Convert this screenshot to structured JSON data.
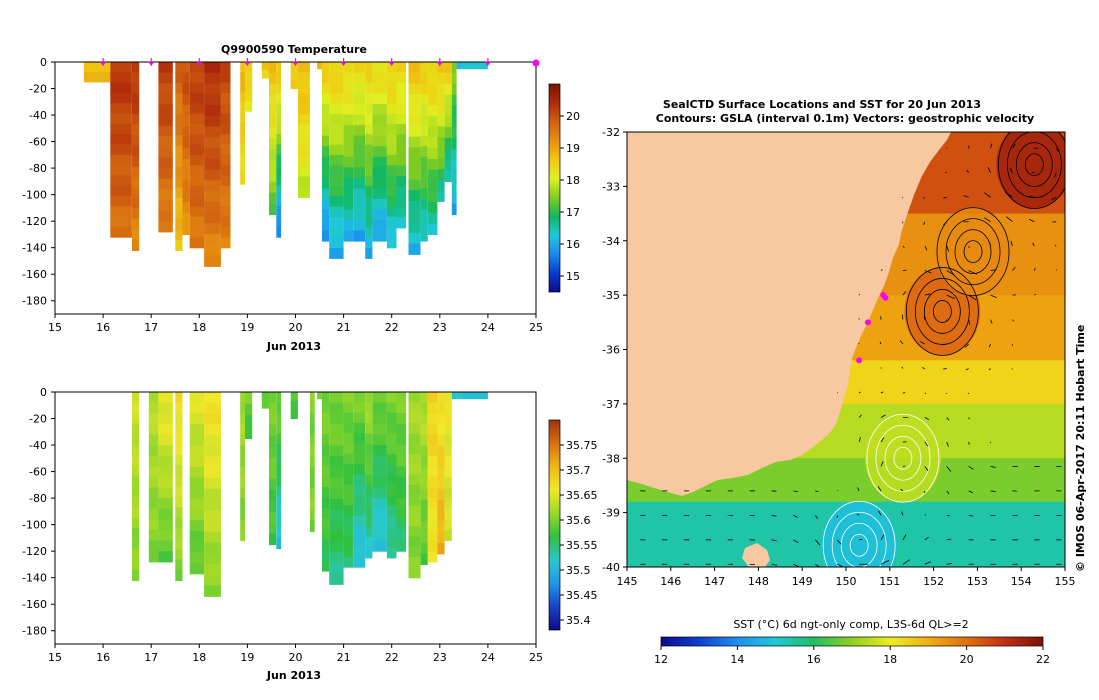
{
  "colors": {
    "land": "#f8c8a0",
    "cbar_temp": [
      "#0b0b8a",
      "#0a3ad0",
      "#1a8aee",
      "#20c8dc",
      "#10b860",
      "#80cc20",
      "#e0f020",
      "#f0c810",
      "#e89010",
      "#d06010",
      "#b02a0a",
      "#7a1408"
    ],
    "cbar_sst": [
      "#0b0b8a",
      "#1040d0",
      "#2090f0",
      "#20c8d8",
      "#20c060",
      "#90d020",
      "#f0ec20",
      "#f0b010",
      "#e07010",
      "#c03010",
      "#801008"
    ],
    "cbar_sal": [
      "#0b0b8a",
      "#1a40c8",
      "#2098e8",
      "#28c8d0",
      "#30c040",
      "#98d828",
      "#f0e828",
      "#f0b818",
      "#d87010",
      "#a03410"
    ],
    "vectors": "#000000",
    "contours_pos": "#000000",
    "contours_neg": "#ffffff",
    "marker": "#ff00ff"
  },
  "chart_data": [
    {
      "type": "heatmap",
      "title": "Q9900590  Temperature",
      "xlabel": "Jun 2013",
      "ylabel": "",
      "xlim": [
        15,
        25
      ],
      "ylim": [
        -190,
        0
      ],
      "x_ticks": [
        "15",
        "16",
        "17",
        "18",
        "19",
        "20",
        "21",
        "22",
        "23",
        "24",
        "25"
      ],
      "y_ticks": [
        "0",
        "-20",
        "-40",
        "-60",
        "-80",
        "-100",
        "-120",
        "-140",
        "-160",
        "-180"
      ],
      "colorbar": {
        "min": 14.5,
        "max": 21.0,
        "ticks": [
          "15",
          "16",
          "17",
          "18",
          "19",
          "20"
        ]
      },
      "profile_markers": [
        16.0,
        17.0,
        18.0,
        19.0,
        20.0,
        21.0,
        22.0,
        23.0,
        24.0,
        25.0
      ],
      "profiles": [
        {
          "x0": 15.6,
          "x1": 16.15,
          "depth": 15,
          "surface": 18.7,
          "deep": 18.7
        },
        {
          "x0": 16.15,
          "x1": 16.6,
          "depth": 132,
          "surface": 20.3,
          "deep": 19.6
        },
        {
          "x0": 16.6,
          "x1": 16.75,
          "depth": 142,
          "surface": 20.3,
          "deep": 19.3
        },
        {
          "x0": 17.15,
          "x1": 17.45,
          "depth": 128,
          "surface": 20.2,
          "deep": 19.4
        },
        {
          "x0": 17.5,
          "x1": 17.65,
          "depth": 142,
          "surface": 19.8,
          "deep": 18.6
        },
        {
          "x0": 17.65,
          "x1": 17.8,
          "depth": 130,
          "surface": 20.0,
          "deep": 19.2
        },
        {
          "x0": 17.8,
          "x1": 18.1,
          "depth": 140,
          "surface": 20.2,
          "deep": 19.5
        },
        {
          "x0": 18.1,
          "x1": 18.45,
          "depth": 154,
          "surface": 20.4,
          "deep": 19.3
        },
        {
          "x0": 18.45,
          "x1": 18.65,
          "depth": 140,
          "surface": 20.1,
          "deep": 19.4
        },
        {
          "x0": 18.85,
          "x1": 18.95,
          "depth": 92,
          "surface": 18.8,
          "deep": 18.3
        },
        {
          "x0": 18.95,
          "x1": 19.1,
          "depth": 37,
          "surface": 18.7,
          "deep": 18.0
        },
        {
          "x0": 19.3,
          "x1": 19.45,
          "depth": 12,
          "surface": 18.7,
          "deep": 18.4
        },
        {
          "x0": 19.45,
          "x1": 19.6,
          "depth": 115,
          "surface": 18.7,
          "deep": 17.2
        },
        {
          "x0": 19.6,
          "x1": 19.7,
          "depth": 132,
          "surface": 18.7,
          "deep": 15.4
        },
        {
          "x0": 19.9,
          "x1": 20.05,
          "depth": 20,
          "surface": 18.7,
          "deep": 18.5
        },
        {
          "x0": 20.05,
          "x1": 20.3,
          "depth": 102,
          "surface": 18.8,
          "deep": 17.8
        },
        {
          "x0": 20.45,
          "x1": 20.55,
          "depth": 5,
          "surface": 18.7,
          "deep": 18.7
        },
        {
          "x0": 20.55,
          "x1": 20.7,
          "depth": 135,
          "surface": 18.6,
          "deep": 15.5
        },
        {
          "x0": 20.7,
          "x1": 21.0,
          "depth": 148,
          "surface": 18.6,
          "deep": 15.8
        },
        {
          "x0": 21.0,
          "x1": 21.2,
          "depth": 135,
          "surface": 18.5,
          "deep": 16.0
        },
        {
          "x0": 21.2,
          "x1": 21.45,
          "depth": 135,
          "surface": 18.4,
          "deep": 15.8
        },
        {
          "x0": 21.45,
          "x1": 21.6,
          "depth": 148,
          "surface": 18.5,
          "deep": 16.0
        },
        {
          "x0": 21.6,
          "x1": 21.9,
          "depth": 135,
          "surface": 18.4,
          "deep": 15.8
        },
        {
          "x0": 21.9,
          "x1": 22.1,
          "depth": 140,
          "surface": 18.6,
          "deep": 16.1
        },
        {
          "x0": 22.1,
          "x1": 22.3,
          "depth": 125,
          "surface": 18.5,
          "deep": 16.2
        },
        {
          "x0": 22.35,
          "x1": 22.6,
          "depth": 145,
          "surface": 18.7,
          "deep": 16.0
        },
        {
          "x0": 22.6,
          "x1": 22.75,
          "depth": 135,
          "surface": 18.6,
          "deep": 16.2
        },
        {
          "x0": 22.75,
          "x1": 22.95,
          "depth": 130,
          "surface": 18.6,
          "deep": 16.4
        },
        {
          "x0": 22.95,
          "x1": 23.1,
          "depth": 105,
          "surface": 18.7,
          "deep": 16.5
        },
        {
          "x0": 23.1,
          "x1": 23.25,
          "depth": 90,
          "surface": 18.6,
          "deep": 16.2
        },
        {
          "x0": 23.25,
          "x1": 23.35,
          "depth": 115,
          "surface": 17.5,
          "deep": 15.9
        },
        {
          "x0": 23.35,
          "x1": 23.45,
          "depth": 5,
          "surface": 16.3,
          "deep": 16.3
        },
        {
          "x0": 23.45,
          "x1": 24.0,
          "depth": 5,
          "surface": 16.3,
          "deep": 16.3
        }
      ]
    },
    {
      "type": "heatmap",
      "title": "",
      "xlabel": "Jun 2013",
      "ylabel": "",
      "xlim": [
        15,
        25
      ],
      "ylim": [
        -190,
        0
      ],
      "x_ticks": [
        "15",
        "16",
        "17",
        "18",
        "19",
        "20",
        "21",
        "22",
        "23",
        "24",
        "25"
      ],
      "y_ticks": [
        "0",
        "-20",
        "-40",
        "-60",
        "-80",
        "-100",
        "-120",
        "-140",
        "-160",
        "-180"
      ],
      "colorbar": {
        "min": 35.38,
        "max": 35.8,
        "ticks": [
          "35.4",
          "35.45",
          "35.5",
          "35.55",
          "35.6",
          "35.65",
          "35.7",
          "35.75"
        ]
      },
      "profiles": [
        {
          "x0": 16.6,
          "x1": 16.75,
          "depth": 142,
          "surface": 35.64,
          "deep": 35.6
        },
        {
          "x0": 16.95,
          "x1": 17.15,
          "depth": 128,
          "surface": 35.63,
          "deep": 35.6
        },
        {
          "x0": 17.15,
          "x1": 17.45,
          "depth": 128,
          "surface": 35.66,
          "deep": 35.58
        },
        {
          "x0": 17.5,
          "x1": 17.65,
          "depth": 142,
          "surface": 35.67,
          "deep": 35.6
        },
        {
          "x0": 17.8,
          "x1": 18.1,
          "depth": 137,
          "surface": 35.65,
          "deep": 35.58
        },
        {
          "x0": 18.1,
          "x1": 18.45,
          "depth": 154,
          "surface": 35.67,
          "deep": 35.6
        },
        {
          "x0": 18.85,
          "x1": 18.95,
          "depth": 112,
          "surface": 35.62,
          "deep": 35.6
        },
        {
          "x0": 18.95,
          "x1": 19.1,
          "depth": 35,
          "surface": 35.6,
          "deep": 35.57
        },
        {
          "x0": 19.3,
          "x1": 19.45,
          "depth": 12,
          "surface": 35.58,
          "deep": 35.58
        },
        {
          "x0": 19.45,
          "x1": 19.6,
          "depth": 115,
          "surface": 35.6,
          "deep": 35.57
        },
        {
          "x0": 19.6,
          "x1": 19.7,
          "depth": 118,
          "surface": 35.6,
          "deep": 35.5
        },
        {
          "x0": 19.9,
          "x1": 20.05,
          "depth": 20,
          "surface": 35.58,
          "deep": 35.58
        },
        {
          "x0": 20.3,
          "x1": 20.4,
          "depth": 105,
          "surface": 35.6,
          "deep": 35.6
        },
        {
          "x0": 20.45,
          "x1": 20.55,
          "depth": 5,
          "surface": 35.6,
          "deep": 35.6
        },
        {
          "x0": 20.55,
          "x1": 20.7,
          "depth": 135,
          "surface": 35.6,
          "deep": 35.56
        },
        {
          "x0": 20.7,
          "x1": 21.0,
          "depth": 145,
          "surface": 35.6,
          "deep": 35.54
        },
        {
          "x0": 21.0,
          "x1": 21.2,
          "depth": 132,
          "surface": 35.6,
          "deep": 35.55
        },
        {
          "x0": 21.2,
          "x1": 21.45,
          "depth": 132,
          "surface": 35.6,
          "deep": 35.5
        },
        {
          "x0": 21.45,
          "x1": 21.6,
          "depth": 125,
          "surface": 35.62,
          "deep": 35.52
        },
        {
          "x0": 21.6,
          "x1": 21.9,
          "depth": 120,
          "surface": 35.6,
          "deep": 35.5
        },
        {
          "x0": 21.9,
          "x1": 22.1,
          "depth": 125,
          "surface": 35.6,
          "deep": 35.53
        },
        {
          "x0": 22.1,
          "x1": 22.3,
          "depth": 120,
          "surface": 35.6,
          "deep": 35.55
        },
        {
          "x0": 22.35,
          "x1": 22.6,
          "depth": 140,
          "surface": 35.62,
          "deep": 35.6
        },
        {
          "x0": 22.6,
          "x1": 22.75,
          "depth": 130,
          "surface": 35.63,
          "deep": 35.58
        },
        {
          "x0": 22.75,
          "x1": 22.95,
          "depth": 128,
          "surface": 35.68,
          "deep": 35.66
        },
        {
          "x0": 22.95,
          "x1": 23.1,
          "depth": 122,
          "surface": 35.66,
          "deep": 35.72
        },
        {
          "x0": 23.1,
          "x1": 23.25,
          "depth": 112,
          "surface": 35.66,
          "deep": 35.64
        },
        {
          "x0": 23.25,
          "x1": 23.35,
          "depth": 5,
          "surface": 35.52,
          "deep": 35.52
        },
        {
          "x0": 23.35,
          "x1": 23.45,
          "depth": 5,
          "surface": 35.52,
          "deep": 35.52
        },
        {
          "x0": 23.45,
          "x1": 24.0,
          "depth": 5,
          "surface": 35.5,
          "deep": 35.5
        }
      ]
    },
    {
      "type": "heatmap",
      "title": "SealCTD Surface Locations and SST for 20 Jun 2013",
      "subtitle": "Contours: GSLA (interval 0.1m) Vectors: geostrophic velocity",
      "xlabel": "",
      "ylabel": "",
      "xlim": [
        145,
        155
      ],
      "ylim": [
        -40,
        -32
      ],
      "x_ticks": [
        "145",
        "146",
        "147",
        "148",
        "149",
        "150",
        "151",
        "152",
        "153",
        "154",
        "155"
      ],
      "y_ticks": [
        "-32",
        "-33",
        "-34",
        "-35",
        "-36",
        "-37",
        "-38",
        "-39",
        "-40"
      ],
      "colorbar": {
        "label": "SST (°C) 6d ngt-only comp, L3S-6d QL>=2",
        "min": 12,
        "max": 22,
        "ticks": [
          "12",
          "14",
          "16",
          "18",
          "20",
          "22"
        ]
      },
      "sst_bands": [
        {
          "lat_top": -32.0,
          "lat_bottom": -33.5,
          "sst": 20.5
        },
        {
          "lat_top": -33.5,
          "lat_bottom": -35.0,
          "sst": 19.5
        },
        {
          "lat_top": -35.0,
          "lat_bottom": -36.2,
          "sst": 19.2
        },
        {
          "lat_top": -36.2,
          "lat_bottom": -37.0,
          "sst": 18.4
        },
        {
          "lat_top": -37.0,
          "lat_bottom": -38.0,
          "sst": 17.4
        },
        {
          "lat_top": -38.0,
          "lat_bottom": -38.8,
          "sst": 16.8
        },
        {
          "lat_top": -38.8,
          "lat_bottom": -40.0,
          "sst": 15.4
        }
      ],
      "eddies": [
        {
          "lon": 152.2,
          "lat": -35.3,
          "sst": 20.2
        },
        {
          "lon": 152.9,
          "lat": -34.2,
          "sst": 19.6
        },
        {
          "lon": 154.3,
          "lat": -32.6,
          "sst": 21.5
        },
        {
          "lon": 150.3,
          "lat": -39.6,
          "sst": 14.8
        },
        {
          "lon": 151.3,
          "lat": -38.0,
          "sst": 17.5
        }
      ],
      "seal_locations": [
        {
          "lon": 150.85,
          "lat": -35.0
        },
        {
          "lon": 150.9,
          "lat": -35.05
        },
        {
          "lon": 150.5,
          "lat": -35.5
        },
        {
          "lon": 150.3,
          "lat": -36.2
        }
      ],
      "credit": "© IMOS 06-Apr-2017 20:11 Hobart Time"
    }
  ]
}
